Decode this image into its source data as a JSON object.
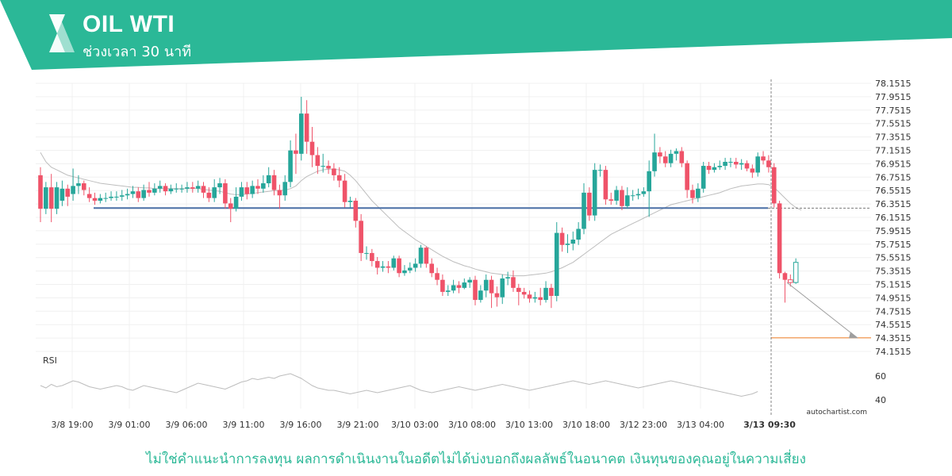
{
  "header": {
    "title": "OIL WTI",
    "subtitle": "ช่วงเวลา 30 นาที",
    "brand_color": "#2bb897",
    "logo_icon": "autochartist-logo-icon"
  },
  "footer": {
    "disclaimer": "ไม่ใช่คำแนะนำการลงทุน ผลการดำเนินงานในอดีตไม่ได้บ่งบอกถึงผลลัพธ์ในอนาคต เงินทุนของคุณอยู่ในความเสี่ยง",
    "watermark": "autochartist.com"
  },
  "chart_data": {
    "type": "candlestick",
    "instrument": "OIL WTI",
    "interval": "30 นาที",
    "colors": {
      "up": "#26a69a",
      "down": "#ef5369",
      "support": "#4a6fa5",
      "target": "#f08c3c",
      "ma": "#bdbdbd",
      "rsi": "#bdbdbd"
    },
    "y_ticks": [
      "78.1515",
      "77.9515",
      "77.7515",
      "77.5515",
      "77.3515",
      "77.1515",
      "76.9515",
      "76.7515",
      "76.5515",
      "76.3515",
      "76.1515",
      "75.9515",
      "75.7515",
      "75.5515",
      "75.3515",
      "75.1515",
      "74.9515",
      "74.7515",
      "74.5515",
      "74.3515",
      "74.1515"
    ],
    "ylim": [
      74.1515,
      78.1515
    ],
    "x_ticks": [
      "3/8 19:00",
      "3/9 01:00",
      "3/9 06:00",
      "3/9 11:00",
      "3/9 16:00",
      "3/9 21:00",
      "3/10 03:00",
      "3/10 08:00",
      "3/10 13:00",
      "3/10 18:00",
      "3/12 23:00",
      "3/13 04:00",
      "3/13 09:30"
    ],
    "current_time_label": "3/13 09:30",
    "support_level": 76.29,
    "target_level": 74.355,
    "candles": [
      [
        76.78,
        76.28,
        76.9,
        76.08
      ],
      [
        76.28,
        76.6,
        76.68,
        76.2
      ],
      [
        76.6,
        76.28,
        76.8,
        76.08
      ],
      [
        76.28,
        76.6,
        76.68,
        76.2
      ],
      [
        76.4,
        76.58,
        76.7,
        76.32
      ],
      [
        76.58,
        76.46,
        76.64,
        76.32
      ],
      [
        76.5,
        76.62,
        76.88,
        76.4
      ],
      [
        76.62,
        76.66,
        76.78,
        76.5
      ],
      [
        76.66,
        76.56,
        76.7,
        76.48
      ],
      [
        76.5,
        76.44,
        76.6,
        76.38
      ],
      [
        76.44,
        76.4,
        76.52,
        76.34
      ],
      [
        76.4,
        76.44,
        76.5,
        76.36
      ],
      [
        76.44,
        76.44,
        76.52,
        76.38
      ],
      [
        76.44,
        76.46,
        76.54,
        76.4
      ],
      [
        76.46,
        76.46,
        76.54,
        76.4
      ],
      [
        76.46,
        76.48,
        76.56,
        76.4
      ],
      [
        76.48,
        76.5,
        76.58,
        76.42
      ],
      [
        76.5,
        76.54,
        76.62,
        76.44
      ],
      [
        76.54,
        76.44,
        76.6,
        76.38
      ],
      [
        76.44,
        76.56,
        76.64,
        76.4
      ],
      [
        76.56,
        76.52,
        76.68,
        76.46
      ],
      [
        76.52,
        76.58,
        76.66,
        76.48
      ],
      [
        76.58,
        76.62,
        76.7,
        76.52
      ],
      [
        76.62,
        76.54,
        76.66,
        76.48
      ],
      [
        76.54,
        76.58,
        76.64,
        76.5
      ],
      [
        76.58,
        76.58,
        76.66,
        76.52
      ],
      [
        76.58,
        76.58,
        76.64,
        76.52
      ],
      [
        76.58,
        76.6,
        76.68,
        76.52
      ],
      [
        76.6,
        76.58,
        76.68,
        76.52
      ],
      [
        76.58,
        76.62,
        76.7,
        76.52
      ],
      [
        76.62,
        76.52,
        76.68,
        76.44
      ],
      [
        76.52,
        76.44,
        76.6,
        76.38
      ],
      [
        76.44,
        76.6,
        76.72,
        76.38
      ],
      [
        76.6,
        76.66,
        76.74,
        76.5
      ],
      [
        76.66,
        76.36,
        76.72,
        76.28
      ],
      [
        76.36,
        76.28,
        76.44,
        76.08
      ],
      [
        76.28,
        76.46,
        76.6,
        76.24
      ],
      [
        76.46,
        76.6,
        76.68,
        76.4
      ],
      [
        76.6,
        76.5,
        76.68,
        76.42
      ],
      [
        76.5,
        76.62,
        76.7,
        76.44
      ],
      [
        76.62,
        76.58,
        76.72,
        76.5
      ],
      [
        76.58,
        76.66,
        76.78,
        76.52
      ],
      [
        76.66,
        76.78,
        76.9,
        76.6
      ],
      [
        76.78,
        76.56,
        76.86,
        76.48
      ],
      [
        76.56,
        76.48,
        76.64,
        76.28
      ],
      [
        76.48,
        76.68,
        76.78,
        76.4
      ],
      [
        76.68,
        77.15,
        77.3,
        76.6
      ],
      [
        77.15,
        77.1,
        77.4,
        76.8
      ],
      [
        77.1,
        77.7,
        77.95,
        77.0
      ],
      [
        77.7,
        77.28,
        77.9,
        77.1
      ],
      [
        77.28,
        77.08,
        77.5,
        76.9
      ],
      [
        77.08,
        76.92,
        77.2,
        76.8
      ],
      [
        76.92,
        76.92,
        77.1,
        76.82
      ],
      [
        76.92,
        76.88,
        77.0,
        76.8
      ],
      [
        76.88,
        76.78,
        76.96,
        76.7
      ],
      [
        76.78,
        76.7,
        76.9,
        76.6
      ],
      [
        76.7,
        76.38,
        76.8,
        76.3
      ],
      [
        76.38,
        76.4,
        76.46,
        76.3
      ],
      [
        76.4,
        76.1,
        76.44,
        76.0
      ],
      [
        76.1,
        75.62,
        76.2,
        75.5
      ],
      [
        75.62,
        75.62,
        75.72,
        75.52
      ],
      [
        75.62,
        75.5,
        75.68,
        75.42
      ],
      [
        75.5,
        75.4,
        75.56,
        75.3
      ],
      [
        75.4,
        75.42,
        75.5,
        75.34
      ],
      [
        75.42,
        75.4,
        75.5,
        75.32
      ],
      [
        75.4,
        75.54,
        75.58,
        75.36
      ],
      [
        75.54,
        75.32,
        75.58,
        75.26
      ],
      [
        75.32,
        75.36,
        75.44,
        75.28
      ],
      [
        75.36,
        75.4,
        75.48,
        75.32
      ],
      [
        75.4,
        75.46,
        75.54,
        75.34
      ],
      [
        75.46,
        75.7,
        75.74,
        75.4
      ],
      [
        75.7,
        75.46,
        75.72,
        75.4
      ],
      [
        75.46,
        75.32,
        75.54,
        75.26
      ],
      [
        75.32,
        75.22,
        75.4,
        75.14
      ],
      [
        75.22,
        75.04,
        75.3,
        74.98
      ],
      [
        75.04,
        75.06,
        75.14,
        74.98
      ],
      [
        75.06,
        75.14,
        75.22,
        75.02
      ],
      [
        75.14,
        75.1,
        75.2,
        75.02
      ],
      [
        75.1,
        75.18,
        75.24,
        75.08
      ],
      [
        75.18,
        75.22,
        75.26,
        75.1
      ],
      [
        75.22,
        74.92,
        75.28,
        74.84
      ],
      [
        74.92,
        75.06,
        75.14,
        74.88
      ],
      [
        75.06,
        75.22,
        75.3,
        74.96
      ],
      [
        75.22,
        75.02,
        75.28,
        74.8
      ],
      [
        75.02,
        74.96,
        75.12,
        74.82
      ],
      [
        74.96,
        75.24,
        75.3,
        74.86
      ],
      [
        75.24,
        75.26,
        75.34,
        75.14
      ],
      [
        75.26,
        75.1,
        75.36,
        75.04
      ],
      [
        75.1,
        75.04,
        75.16,
        74.84
      ],
      [
        75.04,
        75.0,
        75.1,
        74.94
      ],
      [
        75.0,
        74.94,
        75.06,
        74.88
      ],
      [
        74.94,
        74.96,
        75.04,
        74.88
      ],
      [
        74.96,
        74.92,
        75.1,
        74.84
      ],
      [
        74.92,
        75.1,
        75.2,
        74.88
      ],
      [
        75.1,
        74.98,
        75.16,
        74.8
      ],
      [
        74.98,
        75.92,
        76.08,
        74.9
      ],
      [
        75.92,
        75.74,
        76.0,
        75.64
      ],
      [
        75.74,
        75.76,
        75.9,
        75.62
      ],
      [
        75.76,
        75.82,
        75.94,
        75.66
      ],
      [
        75.82,
        75.98,
        76.08,
        75.74
      ],
      [
        75.98,
        76.52,
        76.66,
        75.9
      ],
      [
        76.52,
        76.18,
        76.6,
        76.1
      ],
      [
        76.18,
        76.86,
        76.96,
        76.1
      ],
      [
        76.86,
        76.86,
        76.94,
        76.76
      ],
      [
        76.86,
        76.42,
        76.92,
        76.34
      ],
      [
        76.42,
        76.4,
        76.52,
        76.34
      ],
      [
        76.4,
        76.56,
        76.62,
        76.34
      ],
      [
        76.56,
        76.32,
        76.62,
        76.26
      ],
      [
        76.32,
        76.48,
        76.6,
        76.28
      ],
      [
        76.48,
        76.48,
        76.56,
        76.4
      ],
      [
        76.48,
        76.5,
        76.58,
        76.42
      ],
      [
        76.5,
        76.54,
        76.6,
        76.46
      ],
      [
        76.54,
        76.84,
        77.0,
        76.16
      ],
      [
        76.84,
        77.12,
        77.4,
        76.76
      ],
      [
        77.12,
        77.06,
        77.2,
        76.96
      ],
      [
        77.06,
        76.96,
        77.14,
        76.9
      ],
      [
        76.96,
        77.1,
        77.16,
        76.9
      ],
      [
        77.1,
        77.14,
        77.18,
        77.0
      ],
      [
        77.14,
        76.96,
        77.2,
        76.9
      ],
      [
        76.96,
        76.56,
        77.0,
        76.44
      ],
      [
        76.56,
        76.44,
        76.64,
        76.36
      ],
      [
        76.44,
        76.58,
        76.66,
        76.38
      ],
      [
        76.58,
        76.92,
        76.98,
        76.52
      ],
      [
        76.92,
        76.86,
        76.98,
        76.8
      ],
      [
        76.86,
        76.9,
        76.96,
        76.82
      ],
      [
        76.9,
        76.92,
        77.0,
        76.86
      ],
      [
        76.92,
        76.98,
        77.04,
        76.86
      ],
      [
        76.98,
        76.98,
        77.04,
        76.9
      ],
      [
        76.98,
        76.94,
        77.04,
        76.88
      ],
      [
        76.94,
        76.96,
        77.02,
        76.86
      ],
      [
        76.96,
        76.88,
        77.0,
        76.84
      ],
      [
        76.88,
        76.82,
        76.94,
        76.74
      ],
      [
        76.82,
        77.06,
        77.12,
        76.76
      ],
      [
        77.06,
        77.0,
        77.14,
        76.94
      ],
      [
        77.0,
        76.9,
        77.08,
        76.82
      ],
      [
        76.9,
        76.36,
        76.96,
        76.3
      ],
      [
        76.36,
        75.32,
        76.4,
        75.24
      ],
      [
        75.32,
        75.22,
        75.34,
        74.88
      ],
      [
        75.22,
        75.18,
        75.3,
        75.12
      ],
      [
        75.18,
        75.48,
        75.54,
        75.16
      ]
    ],
    "ma": [
      77.12,
      76.98,
      76.9,
      76.86,
      76.82,
      76.78,
      76.76,
      76.74,
      76.72,
      76.7,
      76.68,
      76.66,
      76.65,
      76.64,
      76.63,
      76.62,
      76.61,
      76.6,
      76.6,
      76.59,
      76.59,
      76.58,
      76.58,
      76.58,
      76.58,
      76.58,
      76.58,
      76.58,
      76.58,
      76.58,
      76.57,
      76.56,
      76.55,
      76.54,
      76.52,
      76.5,
      76.49,
      76.49,
      76.5,
      76.51,
      76.52,
      76.53,
      76.54,
      76.55,
      76.55,
      76.56,
      76.58,
      76.62,
      76.7,
      76.76,
      76.8,
      76.84,
      76.86,
      76.87,
      76.87,
      76.86,
      76.84,
      76.78,
      76.7,
      76.6,
      76.5,
      76.4,
      76.32,
      76.24,
      76.16,
      76.08,
      76.0,
      75.94,
      75.88,
      75.82,
      75.77,
      75.72,
      75.67,
      75.62,
      75.57,
      75.53,
      75.49,
      75.46,
      75.43,
      75.41,
      75.38,
      75.36,
      75.34,
      75.32,
      75.31,
      75.3,
      75.29,
      75.28,
      75.28,
      75.28,
      75.29,
      75.3,
      75.31,
      75.32,
      75.34,
      75.37,
      75.4,
      75.44,
      75.48,
      75.54,
      75.6,
      75.66,
      75.72,
      75.78,
      75.84,
      75.9,
      75.94,
      75.98,
      76.02,
      76.06,
      76.1,
      76.14,
      76.18,
      76.22,
      76.26,
      76.3,
      76.34,
      76.36,
      76.38,
      76.4,
      76.42,
      76.44,
      76.46,
      76.48,
      76.5,
      76.52,
      76.55,
      76.58,
      76.6,
      76.62,
      76.63,
      76.64,
      76.65,
      76.65,
      76.64,
      76.6,
      76.52,
      76.44,
      76.36,
      76.3,
      76.26
    ],
    "rsi": {
      "label": "RSI",
      "ticks": [
        "60",
        "40"
      ],
      "values": [
        52,
        50,
        53,
        51,
        52,
        54,
        56,
        55,
        53,
        51,
        50,
        49,
        50,
        51,
        52,
        51,
        49,
        48,
        50,
        52,
        51,
        50,
        49,
        48,
        47,
        46,
        48,
        50,
        52,
        54,
        53,
        52,
        51,
        50,
        49,
        51,
        53,
        55,
        56,
        58,
        57,
        58,
        59,
        58,
        60,
        61,
        62,
        60,
        58,
        55,
        52,
        50,
        49,
        48,
        48,
        47,
        46,
        45,
        46,
        47,
        48,
        47,
        46,
        47,
        48,
        49,
        50,
        51,
        52,
        50,
        48,
        47,
        46,
        47,
        48,
        49,
        50,
        51,
        50,
        49,
        48,
        49,
        50,
        51,
        52,
        53,
        52,
        51,
        50,
        49,
        48,
        49,
        50,
        51,
        52,
        53,
        54,
        55,
        56,
        55,
        54,
        53,
        54,
        55,
        56,
        55,
        54,
        53,
        52,
        51,
        50,
        51,
        52,
        53,
        54,
        55,
        56,
        55,
        54,
        53,
        52,
        51,
        50,
        49,
        48,
        47,
        46,
        45,
        44,
        43,
        44,
        45,
        47
      ]
    }
  }
}
